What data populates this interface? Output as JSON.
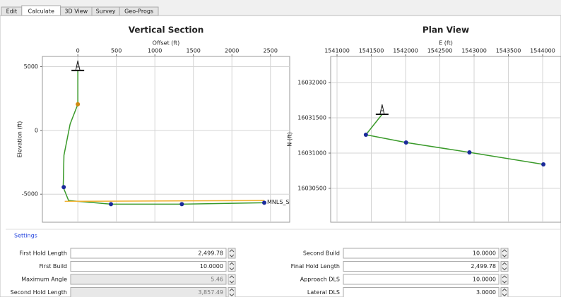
{
  "tabs": [
    "Edit",
    "Calculate",
    "3D View",
    "Survey",
    "Geo-Progs"
  ],
  "active_tab": 1,
  "chart_data": [
    {
      "type": "line",
      "title": "Vertical Section",
      "x_label": "Offset (ft)",
      "y_label": "Elevation (ft)",
      "xlim": [
        -460,
        2750
      ],
      "xticks": [
        0,
        500,
        1000,
        1500,
        2000,
        2500
      ],
      "ylim": [
        -7200,
        5800
      ],
      "yticks": [
        -5000,
        0,
        5000
      ],
      "grid": true,
      "annotation": "MNLS_S",
      "series": [
        {
          "mode": "line",
          "color": "#3a9a2a",
          "x": [
            0,
            0,
            -100,
            -180,
            -190,
            -120,
            430,
            1350,
            2420
          ],
          "values": [
            4700,
            2050,
            500,
            -1950,
            -4450,
            -5500,
            -5780,
            -5780,
            -5670
          ]
        },
        {
          "mode": "line",
          "color": "#f0b030",
          "x": [
            -170,
            2420
          ],
          "values": [
            -5560,
            -5500
          ]
        },
        {
          "mode": "markers",
          "color": "#1a2a9a",
          "x": [
            -183,
            430,
            1350,
            2420
          ],
          "values": [
            -4450,
            -5780,
            -5780,
            -5670
          ]
        },
        {
          "mode": "markers",
          "color": "#d08a10",
          "x": [
            0
          ],
          "values": [
            2050
          ]
        }
      ]
    },
    {
      "type": "line",
      "title": "Plan View",
      "x_label": "E (ft)",
      "y_label": "N (ft)",
      "xlim": [
        1540907,
        1544268
      ],
      "xticks": [
        1541000,
        1541500,
        1542000,
        1542500,
        1543000,
        1543500,
        1544000
      ],
      "ylim": [
        16030020,
        16032370
      ],
      "yticks": [
        16030500,
        16031000,
        16031500,
        16032000
      ],
      "grid": true,
      "series": [
        {
          "mode": "line",
          "color": "#3a9a2a",
          "x": [
            1541658,
            1541421,
            1542007,
            1542932,
            1544011
          ],
          "values": [
            16031550,
            16031260,
            16031150,
            16031010,
            16030840
          ]
        },
        {
          "mode": "markers",
          "color": "#1a2a9a",
          "x": [
            1541421,
            1542007,
            1542932,
            1544011
          ],
          "values": [
            16031260,
            16031150,
            16031010,
            16030840
          ]
        }
      ]
    }
  ],
  "settings": {
    "title": "Settings",
    "columns": [
      [
        {
          "label": "First Hold Length",
          "value": "2,499.78",
          "disabled": false
        },
        {
          "label": "First Build",
          "value": "10.0000",
          "disabled": false
        },
        {
          "label": "Maximum Angle",
          "value": "5.46",
          "disabled": true
        },
        {
          "label": "Second Hold Length",
          "value": "3,857.49",
          "disabled": true
        }
      ],
      [
        {
          "label": "Second Build",
          "value": "10.0000",
          "disabled": false
        },
        {
          "label": "Final Hold Length",
          "value": "2,499.78",
          "disabled": false
        },
        {
          "label": "Approach DLS",
          "value": "10.0000",
          "disabled": false
        },
        {
          "label": "Lateral DLS",
          "value": "3.0000",
          "disabled": false
        }
      ]
    ]
  }
}
